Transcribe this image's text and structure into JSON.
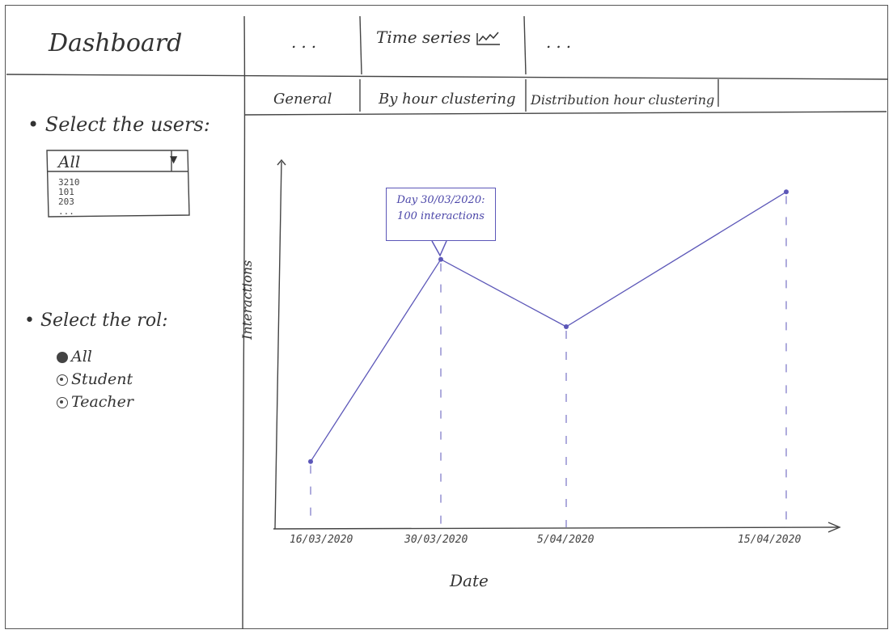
{
  "app": {
    "title": "Dashboard"
  },
  "top_tabs": [
    "...",
    "Time series",
    "..."
  ],
  "sub_tabs": [
    "General",
    "By hour clustering",
    "Distribution hour clustering"
  ],
  "users_select": {
    "label": "Select the users:",
    "value": "All",
    "options": [
      "3210",
      "101",
      "203",
      "..."
    ]
  },
  "role_select": {
    "label": "Select the rol:",
    "options": [
      "All",
      "Student",
      "Teacher"
    ],
    "selected": "All"
  },
  "tooltip": {
    "line1": "Day 30/03/2020:",
    "line2": "100 interactions"
  },
  "colors": {
    "series": "#5c57b8",
    "ink": "#333333"
  },
  "chart_data": {
    "type": "line",
    "title": "",
    "xlabel": "Date",
    "ylabel": "Interactions",
    "x": [
      "16/03/2020",
      "30/03/2020",
      "5/04/2020",
      "15/04/2020"
    ],
    "series": [
      {
        "values": [
          25,
          100,
          75,
          125
        ]
      }
    ],
    "ylim": [
      0,
      135
    ],
    "grid": false
  }
}
